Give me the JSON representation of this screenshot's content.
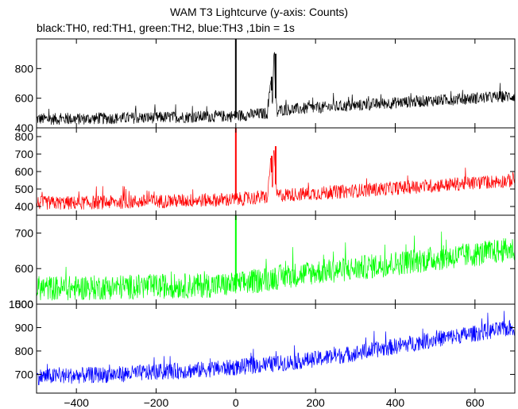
{
  "chart_data": {
    "type": "line",
    "title": "WAM T3 Lightcurve (y-axis: Counts)",
    "subtitle": "black:TH0, red:TH1, green:TH2, blue:TH3 ,1bin = 1s",
    "x_range": [
      -500,
      700
    ],
    "x_ticks": [
      -400,
      -200,
      0,
      200,
      400,
      600
    ],
    "x_tick_labels": [
      "−400",
      "−200",
      "0",
      "200",
      "400",
      "600"
    ],
    "panels": [
      {
        "name": "TH0",
        "color": "#000000",
        "ylim": [
          400,
          1000
        ],
        "y_ticks": [
          400,
          600,
          800
        ],
        "x": [
          -500,
          -400,
          -300,
          -200,
          -100,
          0,
          80,
          88,
          92,
          96,
          100,
          104,
          110,
          200,
          300,
          400,
          500,
          600,
          700
        ],
        "y": [
          460,
          460,
          465,
          470,
          475,
          480,
          500,
          745,
          560,
          900,
          600,
          500,
          520,
          535,
          550,
          570,
          585,
          600,
          615
        ],
        "noise": 25,
        "spikes": [
          {
            "x": 0,
            "y": 1000
          },
          {
            "x": 90,
            "y": 745
          },
          {
            "x": 100,
            "y": 900
          }
        ]
      },
      {
        "name": "TH1",
        "color": "#ff0000",
        "ylim": [
          350,
          850
        ],
        "y_ticks": [
          400,
          500,
          600,
          700,
          800
        ],
        "x": [
          -500,
          -400,
          -300,
          -200,
          -100,
          0,
          80,
          88,
          92,
          96,
          100,
          104,
          110,
          200,
          300,
          400,
          500,
          600,
          700
        ],
        "y": [
          420,
          420,
          425,
          430,
          435,
          440,
          455,
          690,
          500,
          740,
          530,
          460,
          465,
          475,
          490,
          505,
          520,
          535,
          550
        ],
        "noise": 25,
        "spikes": [
          {
            "x": 0,
            "y": 850
          },
          {
            "x": 90,
            "y": 690
          },
          {
            "x": 100,
            "y": 745
          }
        ]
      },
      {
        "name": "TH2",
        "color": "#00ff00",
        "ylim": [
          500,
          750
        ],
        "y_ticks": [
          500,
          600,
          700
        ],
        "x": [
          -500,
          -400,
          -300,
          -200,
          -100,
          0,
          100,
          200,
          300,
          400,
          500,
          600,
          700
        ],
        "y": [
          545,
          545,
          548,
          550,
          552,
          555,
          575,
          590,
          600,
          615,
          628,
          640,
          655
        ],
        "noise": 22,
        "spikes": [
          {
            "x": 0,
            "y": 750
          }
        ]
      },
      {
        "name": "TH3",
        "color": "#0000ff",
        "ylim": [
          620,
          1000
        ],
        "y_ticks": [
          700,
          800,
          900,
          1000
        ],
        "x": [
          -500,
          -400,
          -300,
          -200,
          -100,
          0,
          100,
          200,
          300,
          400,
          500,
          600,
          700
        ],
        "y": [
          690,
          695,
          700,
          710,
          718,
          730,
          745,
          765,
          790,
          820,
          850,
          875,
          900
        ],
        "noise": 22,
        "spikes": []
      }
    ]
  }
}
